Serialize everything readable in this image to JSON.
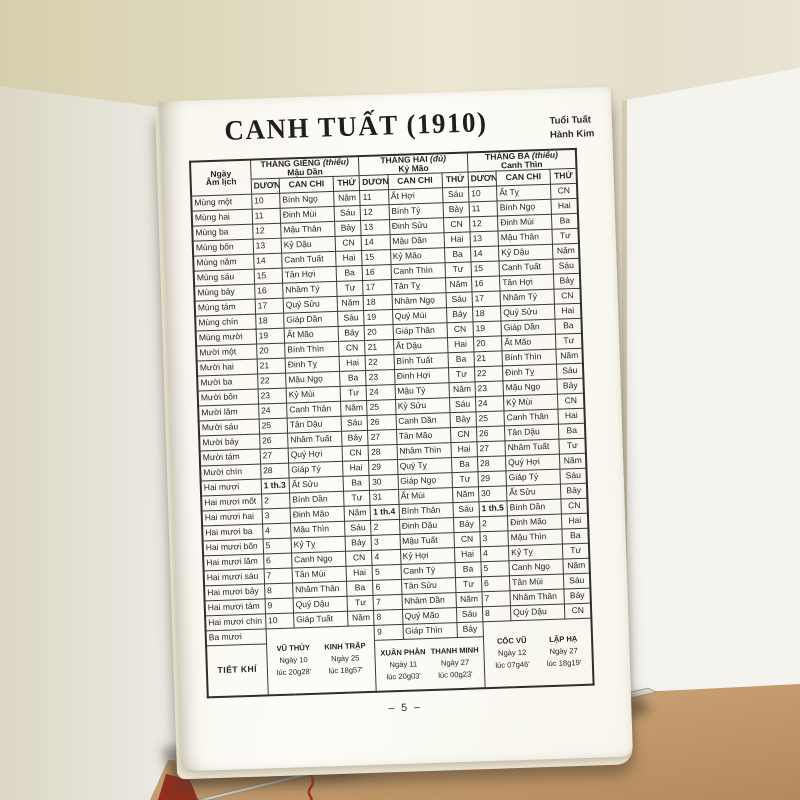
{
  "title": "CANH TUẤT (1910)",
  "subtitle": {
    "line1": "Tuổi Tuất",
    "line2": "Hành Kim"
  },
  "page_number": "– 5 –",
  "colors": {
    "wall": "#e3ddc3",
    "page": "#fbf9f3",
    "ink": "#2e2e2e",
    "table_surface": "#c49b6e",
    "ribbon": "#a4381f",
    "white_panel": "#f4f3ee"
  },
  "table": {
    "day_header": {
      "line1": "Ngày",
      "line2": "Âm lịch"
    },
    "months": [
      {
        "title": "THÁNG GIÊNG",
        "note": "(thiếu)",
        "canchi": "Mậu Dần"
      },
      {
        "title": "THÁNG HAI",
        "note": "(đủ)",
        "canchi": "Kỷ Mão"
      },
      {
        "title": "THÁNG BA",
        "note": "(thiếu)",
        "canchi": "Canh Thìn"
      }
    ],
    "subcols": {
      "solar": "DƯƠNG LỊCH",
      "canchi": "CAN CHI",
      "weekday": "THỨ"
    },
    "rows": [
      {
        "label": "Mùng một",
        "cells": [
          "10",
          "Bính Ngọ",
          "Năm",
          "11",
          "Ất Hợi",
          "Sáu",
          "10",
          "Ất Tỵ",
          "CN"
        ]
      },
      {
        "label": "Mùng hai",
        "cells": [
          "11",
          "Đinh Mùi",
          "Sáu",
          "12",
          "Bính Tý",
          "Bảy",
          "11",
          "Bính Ngọ",
          "Hai"
        ]
      },
      {
        "label": "Mùng ba",
        "cells": [
          "12",
          "Mậu Thân",
          "Bảy",
          "13",
          "Đinh Sửu",
          "CN",
          "12",
          "Đinh Mùi",
          "Ba"
        ]
      },
      {
        "label": "Mùng bốn",
        "cells": [
          "13",
          "Kỷ Dậu",
          "CN",
          "14",
          "Mậu Dần",
          "Hai",
          "13",
          "Mậu Thân",
          "Tư"
        ]
      },
      {
        "label": "Mùng năm",
        "cells": [
          "14",
          "Canh Tuất",
          "Hai",
          "15",
          "Kỷ Mão",
          "Ba",
          "14",
          "Kỷ Dậu",
          "Năm"
        ]
      },
      {
        "label": "Mùng sáu",
        "cells": [
          "15",
          "Tân Hợi",
          "Ba",
          "16",
          "Canh Thìn",
          "Tư",
          "15",
          "Canh Tuất",
          "Sáu"
        ]
      },
      {
        "label": "Mùng bảy",
        "cells": [
          "16",
          "Nhâm Tý",
          "Tư",
          "17",
          "Tân Tỵ",
          "Năm",
          "16",
          "Tân Hợi",
          "Bảy"
        ]
      },
      {
        "label": "Mùng tám",
        "cells": [
          "17",
          "Quý Sửu",
          "Năm",
          "18",
          "Nhâm Ngọ",
          "Sáu",
          "17",
          "Nhâm Tý",
          "CN"
        ]
      },
      {
        "label": "Mùng chín",
        "cells": [
          "18",
          "Giáp Dần",
          "Sáu",
          "19",
          "Quý Mùi",
          "Bảy",
          "18",
          "Quý Sửu",
          "Hai"
        ]
      },
      {
        "label": "Mùng mười",
        "cells": [
          "19",
          "Ất Mão",
          "Bảy",
          "20",
          "Giáp Thân",
          "CN",
          "19",
          "Giáp Dần",
          "Ba"
        ]
      },
      {
        "label": "Mười một",
        "cells": [
          "20",
          "Bính Thìn",
          "CN",
          "21",
          "Ất Dậu",
          "Hai",
          "20",
          "Ất Mão",
          "Tư"
        ]
      },
      {
        "label": "Mười hai",
        "cells": [
          "21",
          "Đinh Tỵ",
          "Hai",
          "22",
          "Bính Tuất",
          "Ba",
          "21",
          "Bính Thìn",
          "Năm"
        ]
      },
      {
        "label": "Mười ba",
        "cells": [
          "22",
          "Mậu Ngọ",
          "Ba",
          "23",
          "Đinh Hợi",
          "Tư",
          "22",
          "Đinh Tỵ",
          "Sáu"
        ]
      },
      {
        "label": "Mười bốn",
        "cells": [
          "23",
          "Kỷ Mùi",
          "Tư",
          "24",
          "Mậu Tý",
          "Năm",
          "23",
          "Mậu Ngọ",
          "Bảy"
        ]
      },
      {
        "label": "Mười lăm",
        "cells": [
          "24",
          "Canh Thân",
          "Năm",
          "25",
          "Kỷ Sửu",
          "Sáu",
          "24",
          "Kỷ Mùi",
          "CN"
        ]
      },
      {
        "label": "Mười sáu",
        "cells": [
          "25",
          "Tân Dậu",
          "Sáu",
          "26",
          "Canh Dần",
          "Bảy",
          "25",
          "Canh Thân",
          "Hai"
        ]
      },
      {
        "label": "Mười bảy",
        "cells": [
          "26",
          "Nhâm Tuất",
          "Bảy",
          "27",
          "Tân Mão",
          "CN",
          "26",
          "Tân Dậu",
          "Ba"
        ]
      },
      {
        "label": "Mười tám",
        "cells": [
          "27",
          "Quý Hợi",
          "CN",
          "28",
          "Nhâm Thìn",
          "Hai",
          "27",
          "Nhâm Tuất",
          "Tư"
        ]
      },
      {
        "label": "Mười chín",
        "cells": [
          "28",
          "Giáp Tý",
          "Hai",
          "29",
          "Quý Tỵ",
          "Ba",
          "28",
          "Quý Hợi",
          "Năm"
        ]
      },
      {
        "label": "Hai mươi",
        "cells": [
          "1 th.3",
          "Ất Sửu",
          "Ba",
          "30",
          "Giáp Ngọ",
          "Tư",
          "29",
          "Giáp Tý",
          "Sáu"
        ]
      },
      {
        "label": "Hai mươi mốt",
        "cells": [
          "2",
          "Bính Dần",
          "Tư",
          "31",
          "Ất Mùi",
          "Năm",
          "30",
          "Ất Sửu",
          "Bảy"
        ]
      },
      {
        "label": "Hai mươi hai",
        "cells": [
          "3",
          "Đinh Mão",
          "Năm",
          "1 th.4",
          "Bính Thân",
          "Sáu",
          "1 th.5",
          "Bính Dần",
          "CN"
        ]
      },
      {
        "label": "Hai mươi ba",
        "cells": [
          "4",
          "Mậu Thìn",
          "Sáu",
          "2",
          "Đinh Dậu",
          "Bảy",
          "2",
          "Đinh Mão",
          "Hai"
        ]
      },
      {
        "label": "Hai mươi bốn",
        "cells": [
          "5",
          "Kỷ Tỵ",
          "Bảy",
          "3",
          "Mậu Tuất",
          "CN",
          "3",
          "Mậu Thìn",
          "Ba"
        ]
      },
      {
        "label": "Hai mươi lăm",
        "cells": [
          "6",
          "Canh Ngọ",
          "CN",
          "4",
          "Kỷ Hợi",
          "Hai",
          "4",
          "Kỷ Tỵ",
          "Tư"
        ]
      },
      {
        "label": "Hai mươi sáu",
        "cells": [
          "7",
          "Tân Mùi",
          "Hai",
          "5",
          "Canh Tý",
          "Ba",
          "5",
          "Canh Ngọ",
          "Năm"
        ]
      },
      {
        "label": "Hai mươi bảy",
        "cells": [
          "8",
          "Nhâm Thân",
          "Ba",
          "6",
          "Tân Sửu",
          "Tư",
          "6",
          "Tân Mùi",
          "Sáu"
        ]
      },
      {
        "label": "Hai mươi tám",
        "cells": [
          "9",
          "Quý Dậu",
          "Tư",
          "7",
          "Nhâm Dần",
          "Năm",
          "7",
          "Nhâm Thân",
          "Bảy"
        ]
      },
      {
        "label": "Hai mươi chín",
        "cells": [
          "10",
          "Giáp Tuất",
          "Năm",
          "8",
          "Quý Mão",
          "Sáu",
          "8",
          "Quý Dậu",
          "CN"
        ]
      },
      {
        "label": "Ba mươi",
        "cells": [
          "",
          "",
          "",
          "9",
          "Giáp Thìn",
          "Bảy",
          "",
          "",
          ""
        ]
      }
    ]
  },
  "tietkhi": {
    "label": "TIẾT KHÍ",
    "groups": [
      {
        "terms": [
          {
            "name": "VŨ THỦY",
            "day": "Ngày 10",
            "time": "lúc 20g28'"
          },
          {
            "name": "KINH TRẬP",
            "day": "Ngày 25",
            "time": "lúc 18g57'"
          }
        ]
      },
      {
        "terms": [
          {
            "name": "XUÂN PHÂN",
            "day": "Ngày 11",
            "time": "lúc 20g03'"
          },
          {
            "name": "THANH MINH",
            "day": "Ngày 27",
            "time": "lúc 00g23'"
          }
        ]
      },
      {
        "terms": [
          {
            "name": "CỐC VŨ",
            "day": "Ngày 12",
            "time": "lúc 07g46'"
          },
          {
            "name": "LẬP HẠ",
            "day": "Ngày 27",
            "time": "lúc 18g19'"
          }
        ]
      }
    ]
  }
}
